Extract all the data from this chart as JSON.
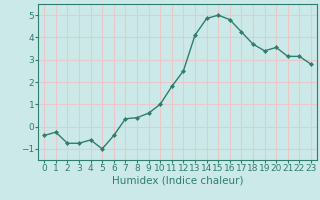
{
  "x": [
    0,
    1,
    2,
    3,
    4,
    5,
    6,
    7,
    8,
    9,
    10,
    11,
    12,
    13,
    14,
    15,
    16,
    17,
    18,
    19,
    20,
    21,
    22,
    23
  ],
  "y": [
    -0.4,
    -0.25,
    -0.75,
    -0.75,
    -0.6,
    -1.0,
    -0.4,
    0.35,
    0.4,
    0.6,
    1.0,
    1.8,
    2.5,
    4.1,
    4.85,
    5.0,
    4.8,
    4.25,
    3.7,
    3.4,
    3.55,
    3.15,
    3.15,
    2.8
  ],
  "xlabel": "Humidex (Indice chaleur)",
  "ylim": [
    -1.5,
    5.5
  ],
  "xlim": [
    -0.5,
    23.5
  ],
  "yticks": [
    -1,
    0,
    1,
    2,
    3,
    4,
    5
  ],
  "xticks": [
    0,
    1,
    2,
    3,
    4,
    5,
    6,
    7,
    8,
    9,
    10,
    11,
    12,
    13,
    14,
    15,
    16,
    17,
    18,
    19,
    20,
    21,
    22,
    23
  ],
  "line_color": "#2e7d6e",
  "marker": "D",
  "marker_size": 2.0,
  "line_width": 1.0,
  "bg_color": "#cce9e9",
  "grid_color": "#e8c8c8",
  "tick_color": "#2e7d6e",
  "label_color": "#2e7d6e",
  "xlabel_fontsize": 7.5,
  "tick_fontsize": 6.5
}
